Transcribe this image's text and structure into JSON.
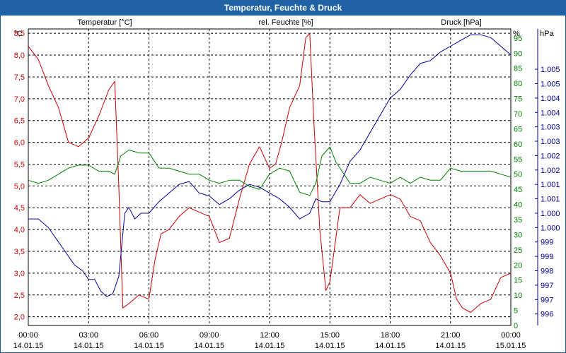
{
  "window": {
    "title": "Temperatur, Feuchte & Druck"
  },
  "colors": {
    "temp": "#cc0000",
    "hum": "#008000",
    "press": "#000099",
    "title_bg": "#1f63a4"
  },
  "chart_data": {
    "type": "line",
    "title": "Temperatur, Feuchte & Druck",
    "x_ticks": [
      {
        "time": "00:00",
        "date": "14.01.15"
      },
      {
        "time": "03:00",
        "date": "14.01.15"
      },
      {
        "time": "06:00",
        "date": "14.01.15"
      },
      {
        "time": "09:00",
        "date": "14.01.15"
      },
      {
        "time": "12:00",
        "date": "14.01.15"
      },
      {
        "time": "15:00",
        "date": "14.01.15"
      },
      {
        "time": "18:00",
        "date": "14.01.15"
      },
      {
        "time": "21:00",
        "date": "14.01.15"
      },
      {
        "time": "00:00",
        "date": "15.01.15"
      }
    ],
    "x_range_hours": [
      0,
      24
    ],
    "axes": {
      "temp": {
        "unit": "°C",
        "legend": "Temperatur [°C]",
        "range": [
          1.8,
          8.6
        ],
        "ticks": [
          "2,0",
          "2,5",
          "3,0",
          "3,5",
          "4,0",
          "4,5",
          "5,0",
          "5,5",
          "6,0",
          "6,5",
          "7,0",
          "7,5",
          "8,0",
          "8,5"
        ]
      },
      "hum": {
        "unit": "%",
        "legend": "rel. Feuchte [%]",
        "range": [
          0,
          98
        ],
        "ticks": [
          "0",
          "5",
          "10",
          "15",
          "20",
          "25",
          "30",
          "35",
          "40",
          "45",
          "50",
          "55",
          "60",
          "65",
          "70",
          "75",
          "80",
          "85",
          "90",
          "95"
        ]
      },
      "press": {
        "unit": "hPa",
        "legend": "Druck [hPa]",
        "range": [
          995.6,
          1005.9
        ],
        "ticks": [
          "996",
          "997",
          "997",
          "998",
          "999",
          "999",
          "1.000",
          "1.000",
          "1.001",
          "1.001",
          "1.002",
          "1.002",
          "1.003",
          "1.003",
          "1.004",
          "1.004",
          "1.005",
          "1.005"
        ]
      }
    },
    "series": [
      {
        "name": "Temperatur [°C]",
        "axis": "temp",
        "x": [
          0,
          0.5,
          1,
          1.5,
          2,
          2.5,
          3,
          3.5,
          4,
          4.3,
          4.5,
          4.7,
          5,
          5.5,
          6,
          6.3,
          6.6,
          7,
          7.5,
          8,
          8.5,
          9,
          9.5,
          10,
          10.5,
          11,
          11.5,
          12,
          12.3,
          12.6,
          13,
          13.5,
          13.8,
          14,
          14.2,
          14.5,
          14.8,
          15,
          15.5,
          16,
          16.5,
          17,
          17.5,
          18,
          18.5,
          19,
          19.5,
          20,
          20.5,
          21,
          21.3,
          21.6,
          22,
          22.5,
          23,
          23.5,
          24
        ],
        "values": [
          8.2,
          7.9,
          7.3,
          6.8,
          6.0,
          5.9,
          6.1,
          6.6,
          7.2,
          7.4,
          5.0,
          2.2,
          2.3,
          2.5,
          2.4,
          3.3,
          3.9,
          4.0,
          4.3,
          4.5,
          4.4,
          4.3,
          3.7,
          3.8,
          4.7,
          5.5,
          5.9,
          5.4,
          5.5,
          6.0,
          6.8,
          7.3,
          8.4,
          8.5,
          6.5,
          4.0,
          2.6,
          2.8,
          4.5,
          4.5,
          4.8,
          4.6,
          4.7,
          4.8,
          4.7,
          4.3,
          4.2,
          3.7,
          3.4,
          3.0,
          2.4,
          2.2,
          2.1,
          2.3,
          2.4,
          2.9,
          3.0
        ]
      },
      {
        "name": "rel. Feuchte [%]",
        "axis": "hum",
        "x": [
          0,
          0.5,
          1,
          1.5,
          2,
          2.5,
          3,
          3.5,
          4,
          4.3,
          4.6,
          5,
          5.5,
          6,
          6.5,
          7,
          7.5,
          8,
          8.5,
          9,
          9.5,
          10,
          10.5,
          11,
          11.5,
          12,
          12.5,
          13,
          13.5,
          14,
          14.3,
          14.6,
          15,
          15.3,
          15.6,
          16,
          16.5,
          17,
          17.5,
          18,
          18.5,
          19,
          19.5,
          20,
          20.5,
          21,
          21.5,
          22,
          22.5,
          23,
          23.5,
          24
        ],
        "values": [
          48,
          47,
          48,
          50,
          52,
          53,
          53,
          51,
          51,
          50,
          56,
          58,
          57,
          57,
          52,
          52,
          51,
          50,
          50,
          48,
          47,
          48,
          48,
          46,
          45,
          50,
          52,
          51,
          44,
          43,
          47,
          56,
          59,
          54,
          51,
          47,
          47,
          49,
          48,
          47,
          49,
          47,
          49,
          48,
          48,
          52,
          51,
          51,
          51,
          51,
          50,
          49
        ]
      },
      {
        "name": "Druck [hPa]",
        "axis": "press",
        "x": [
          0,
          0.5,
          1,
          1.5,
          2,
          2.3,
          2.7,
          3,
          3.3,
          3.6,
          3.9,
          4.2,
          4.5,
          4.8,
          5,
          5.3,
          5.6,
          6,
          6.5,
          7,
          7.5,
          8,
          8.5,
          9,
          9.5,
          10,
          10.5,
          11,
          11.5,
          12,
          12.5,
          13,
          13.5,
          14,
          14.3,
          14.6,
          15,
          15.5,
          16,
          16.5,
          17,
          17.5,
          18,
          18.5,
          19,
          19.5,
          20,
          20.5,
          21,
          21.5,
          22,
          22.5,
          23,
          23.5,
          24
        ],
        "values": [
          999.3,
          999.3,
          999.0,
          998.5,
          998.0,
          997.7,
          997.5,
          997.2,
          997.2,
          996.8,
          996.6,
          996.7,
          997.3,
          999.5,
          999.7,
          999.3,
          999.5,
          999.5,
          999.9,
          1000.2,
          1000.5,
          1000.6,
          1000.2,
          1000.1,
          999.8,
          1000.0,
          1000.3,
          1000.5,
          1000.4,
          1000.2,
          1000.0,
          999.7,
          999.3,
          999.5,
          1000.0,
          999.9,
          999.9,
          1000.5,
          1001.3,
          1001.7,
          1002.3,
          1002.9,
          1003.5,
          1003.8,
          1004.3,
          1004.7,
          1004.8,
          1005.1,
          1005.3,
          1005.5,
          1005.7,
          1005.7,
          1005.6,
          1005.3,
          1005.0
        ]
      }
    ]
  }
}
